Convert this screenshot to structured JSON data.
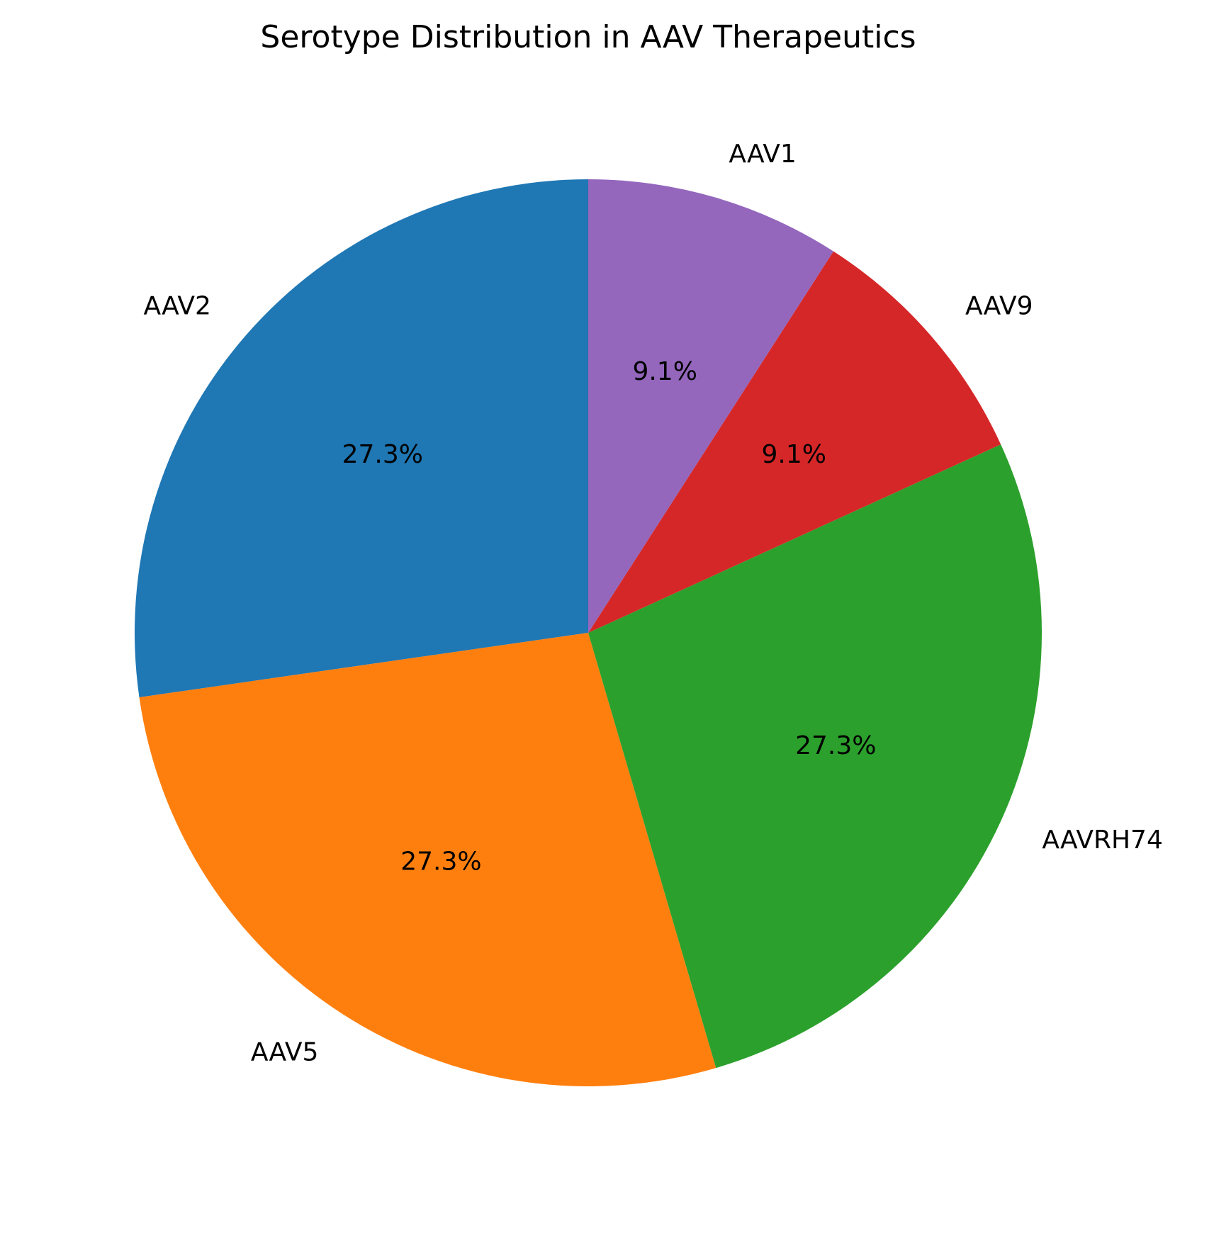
{
  "chart_data": {
    "type": "pie",
    "title": "Serotype Distribution in AAV Therapeutics",
    "start_angle_deg": 90,
    "direction": "counterclockwise",
    "slices": [
      {
        "label": "AAV2",
        "value": 27.3,
        "pct_label": "27.3%",
        "color": "#1f77b4"
      },
      {
        "label": "AAV5",
        "value": 27.3,
        "pct_label": "27.3%",
        "color": "#ff7f0e"
      },
      {
        "label": "AAVRH74",
        "value": 27.3,
        "pct_label": "27.3%",
        "color": "#2ca02c"
      },
      {
        "label": "AAV9",
        "value": 9.1,
        "pct_label": "9.1%",
        "color": "#d62728"
      },
      {
        "label": "AAV1",
        "value": 9.1,
        "pct_label": "9.1%",
        "color": "#9467bd"
      }
    ]
  }
}
